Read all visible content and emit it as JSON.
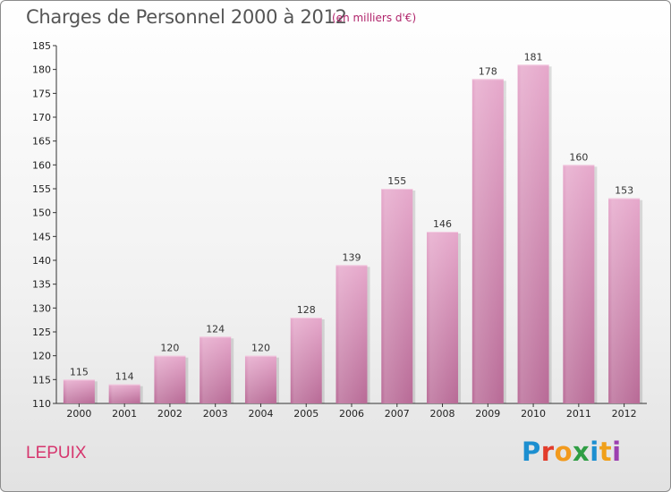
{
  "chart_data": {
    "type": "bar",
    "title": "Charges de Personnel 2000 à 2012",
    "subtitle": "(en milliers d'€)",
    "categories": [
      "2000",
      "2001",
      "2002",
      "2003",
      "2004",
      "2005",
      "2006",
      "2007",
      "2008",
      "2009",
      "2010",
      "2011",
      "2012"
    ],
    "values": [
      115,
      114,
      120,
      124,
      120,
      128,
      139,
      155,
      146,
      178,
      181,
      160,
      153
    ],
    "ylim": [
      110,
      185
    ],
    "yticks": [
      110,
      115,
      120,
      125,
      130,
      135,
      140,
      145,
      150,
      155,
      160,
      165,
      170,
      175,
      180,
      185
    ],
    "xlabel": "",
    "ylabel": "",
    "grid": false,
    "bar_color": "#d98fb8",
    "bar_color_top": "#e8a9cc",
    "bar_color_bottom": "#b8608f"
  },
  "location": "LEPUIX",
  "logo": {
    "letters": [
      "P",
      "r",
      "o",
      "x",
      "i",
      "t",
      "i"
    ],
    "colors": [
      "#1c8fd0",
      "#e23c2b",
      "#f29a1d",
      "#2f9e44",
      "#1c8fd0",
      "#f0a01a",
      "#9c3fb0"
    ]
  }
}
